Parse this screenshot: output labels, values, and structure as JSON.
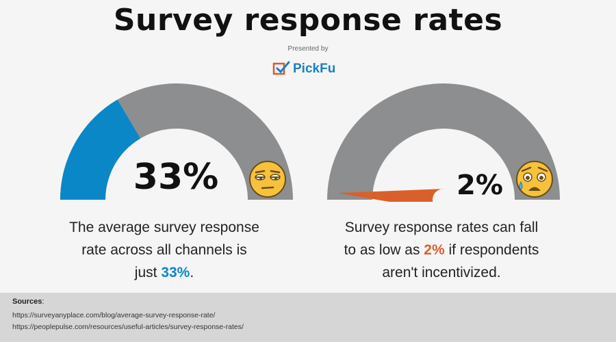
{
  "header": {
    "title": "Survey response rates",
    "presented_by": "Presented by",
    "brand": "PickFu"
  },
  "chart_data": [
    {
      "type": "gauge",
      "value_percent": 33,
      "range": [
        0,
        100
      ],
      "value_label": "33%",
      "fill_color": "#0a87c7",
      "track_color": "#8c8e90",
      "emoji": "unamused-face-icon"
    },
    {
      "type": "gauge",
      "value_percent": 2,
      "range": [
        0,
        100
      ],
      "value_label": "2%",
      "needle_color": "#d9602a",
      "track_color": "#8c8e90",
      "emoji": "weary-sweat-face-icon"
    }
  ],
  "descriptions": {
    "left": {
      "line1": "The average survey response",
      "line2": "rate across all channels is",
      "line3_pre": "just ",
      "line3_hl": "33%",
      "line3_post": "."
    },
    "right": {
      "line1": "Survey response rates can fall",
      "line2_pre": "to as low as ",
      "line2_hl": "2%",
      "line2_post": " if respondents",
      "line3": "aren't incentivized."
    }
  },
  "sources": {
    "label": "Sources",
    "colon": ":",
    "urls": [
      "https://surveyanyplace.com/blog/average-survey-response-rate/",
      "https://peoplepulse.com/resources/useful-articles/survey-response-rates/"
    ]
  }
}
